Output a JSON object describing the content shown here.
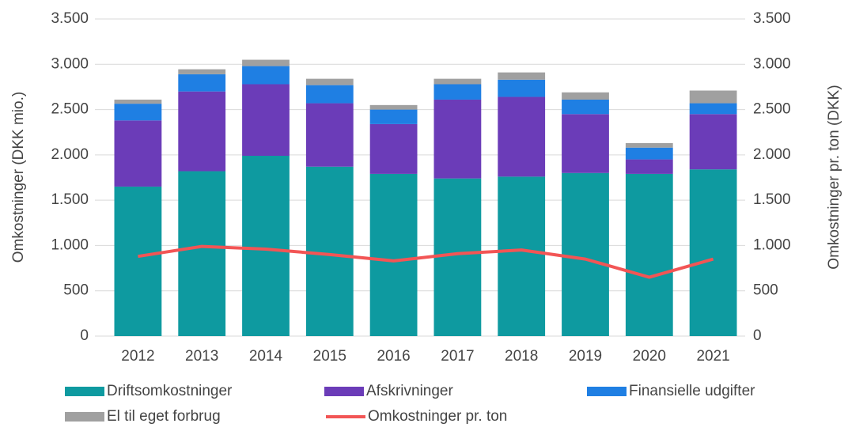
{
  "chart_data": {
    "type": "bar",
    "stacked": true,
    "categories": [
      "2012",
      "2013",
      "2014",
      "2015",
      "2016",
      "2017",
      "2018",
      "2019",
      "2020",
      "2021"
    ],
    "ylabel": "Omkostninger (DKK mio.)",
    "y2label": "Omkostninger pr. ton (DKK)",
    "ylim": [
      0,
      3500
    ],
    "yticks": [
      0,
      500,
      {
        "value": 1000,
        "label": "1.000"
      },
      {
        "value": 1500,
        "label": "1.500"
      },
      {
        "value": 2000,
        "label": "2.000"
      },
      {
        "value": 2500,
        "label": "2.500"
      },
      {
        "value": 3000,
        "label": "3.000"
      },
      {
        "value": 3500,
        "label": "3.500"
      }
    ],
    "y2lim": [
      0,
      3500
    ],
    "y2ticks": [
      0,
      500,
      {
        "value": 1000,
        "label": "1.000"
      },
      {
        "value": 1500,
        "label": "1.500"
      },
      {
        "value": 2000,
        "label": "2.000"
      },
      {
        "value": 2500,
        "label": "2.500"
      },
      {
        "value": 3000,
        "label": "3.000"
      },
      {
        "value": 3500,
        "label": "3.500"
      }
    ],
    "grid": true,
    "legend": "bottom",
    "series": [
      {
        "name": "Driftsomkostninger",
        "color": "#0e9aa0",
        "values": [
          1650,
          1820,
          1990,
          1870,
          1790,
          1740,
          1760,
          1800,
          1790,
          1840
        ]
      },
      {
        "name": "Afskrivninger",
        "color": "#6b3cb8",
        "values": [
          730,
          880,
          790,
          700,
          550,
          870,
          880,
          650,
          160,
          610
        ]
      },
      {
        "name": "Finansielle udgifter",
        "color": "#1f7fe3",
        "values": [
          185,
          190,
          200,
          200,
          160,
          170,
          190,
          160,
          130,
          120
        ]
      },
      {
        "name": "El til eget forbrug",
        "color": "#a0a0a0",
        "values": [
          45,
          55,
          70,
          70,
          50,
          60,
          80,
          80,
          50,
          140
        ]
      },
      {
        "name": "Omkostninger pr. ton",
        "color": "#f25555",
        "type": "line",
        "axis": "y2",
        "values": [
          880,
          990,
          960,
          900,
          830,
          910,
          950,
          850,
          650,
          850
        ]
      }
    ]
  }
}
